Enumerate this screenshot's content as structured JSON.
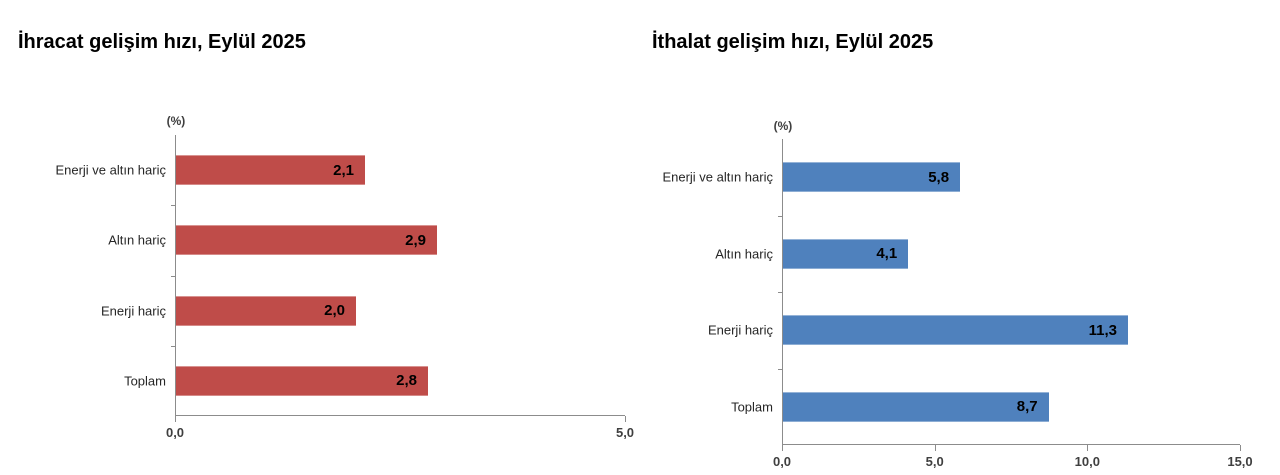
{
  "page": {
    "background_color": "#ffffff"
  },
  "styles": {
    "axis_color": "#8c8c8c",
    "category_text_color": "#262626",
    "tick_label_color": "#3f3f3f",
    "value_label_color": "#000000",
    "title_color": "#000000",
    "export_bar_color": "#bf4c49",
    "import_bar_color": "#4f81bd"
  },
  "chart_data": [
    {
      "type": "bar",
      "orientation": "horizontal",
      "title": "İhracat gelişim hızı, Eylül 2025",
      "unit_label": "(%)",
      "categories": [
        "Enerji ve altın hariç",
        "Altın hariç",
        "Enerji hariç",
        "Toplam"
      ],
      "values": [
        2.1,
        2.9,
        2.0,
        2.8
      ],
      "value_labels": [
        "2,1",
        "2,9",
        "2,0",
        "2,8"
      ],
      "xlim": [
        0,
        5
      ],
      "xtick_labels": [
        "0,0",
        "5,0"
      ],
      "bar_color": "#bf4c49",
      "grid": "off",
      "legend": "none"
    },
    {
      "type": "bar",
      "orientation": "horizontal",
      "title": "İthalat gelişim hızı, Eylül 2025",
      "unit_label": "(%)",
      "categories": [
        "Enerji ve altın hariç",
        "Altın hariç",
        "Enerji hariç",
        "Toplam"
      ],
      "values": [
        5.8,
        4.1,
        11.3,
        8.7
      ],
      "value_labels": [
        "5,8",
        "4,1",
        "11,3",
        "8,7"
      ],
      "xlim": [
        0,
        15
      ],
      "xtick_labels": [
        "0,0",
        "5,0",
        "10,0",
        "15,0"
      ],
      "bar_color": "#4f81bd",
      "grid": "off",
      "legend": "none"
    }
  ]
}
